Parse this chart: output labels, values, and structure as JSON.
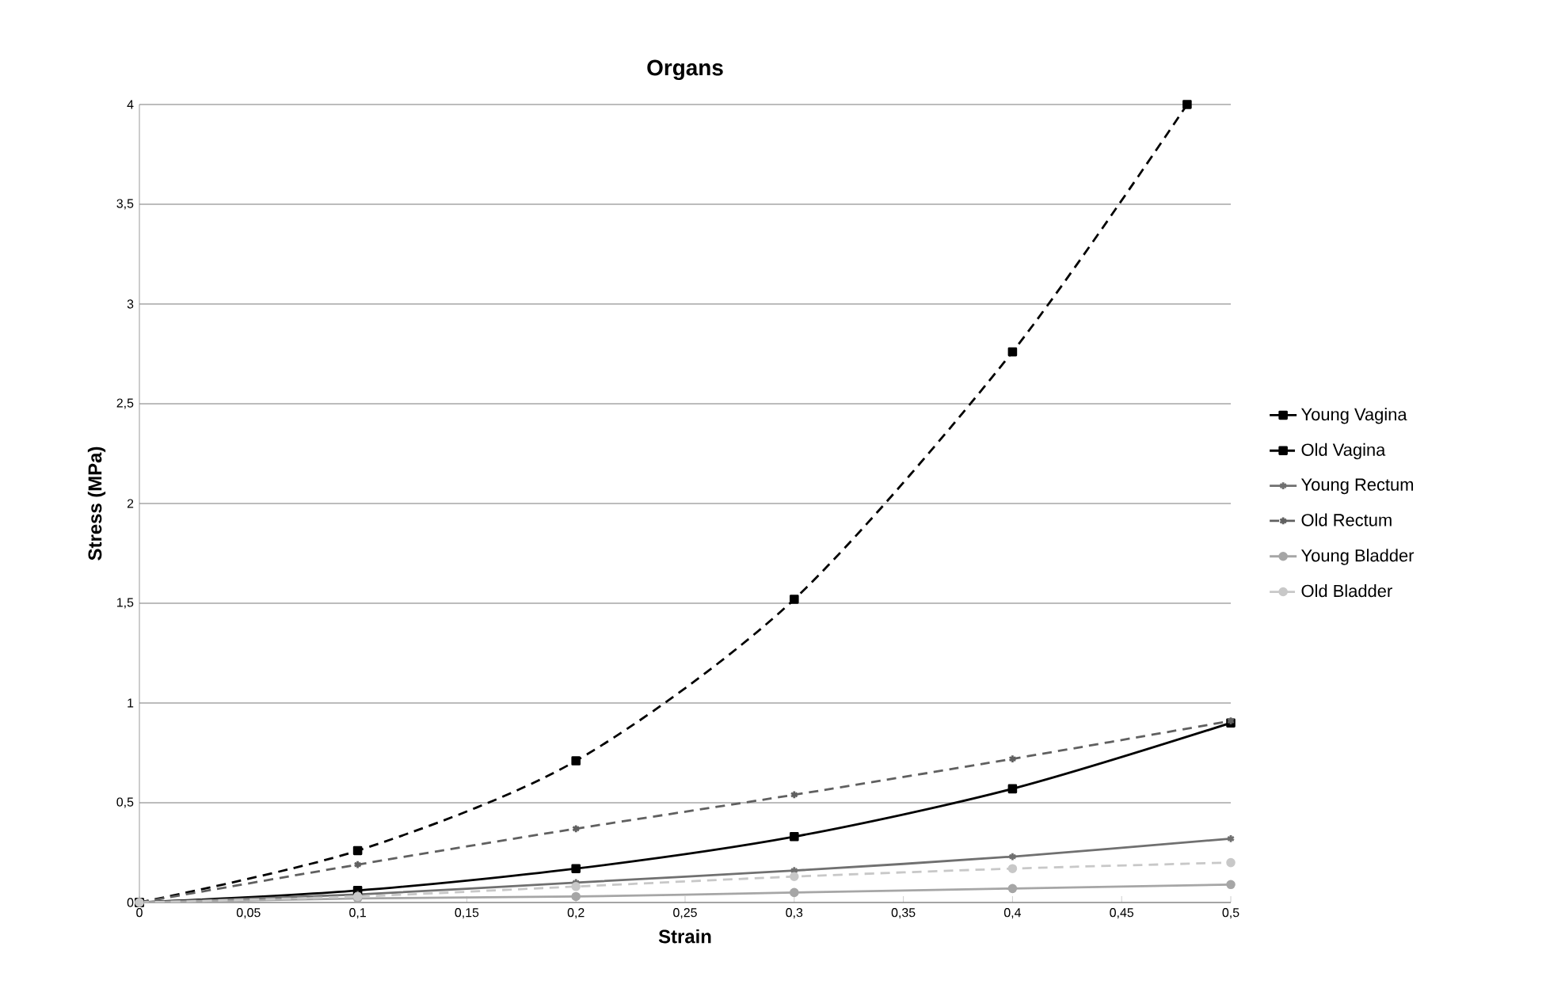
{
  "chart_data": {
    "type": "line",
    "title": "Organs",
    "xlabel": "Strain",
    "ylabel": "Stress (MPa)",
    "xlim": [
      0,
      0.5
    ],
    "ylim": [
      0,
      4
    ],
    "xticks": [
      0,
      {
        "value": 0.05,
        "label": "0,05"
      },
      {
        "value": 0.1,
        "label": "0,1"
      },
      {
        "value": 0.15,
        "label": "0,15"
      },
      {
        "value": 0.2,
        "label": "0,2"
      },
      {
        "value": 0.25,
        "label": "0,25"
      },
      {
        "value": 0.3,
        "label": "0,3"
      },
      {
        "value": 0.35,
        "label": "0,35"
      },
      {
        "value": 0.4,
        "label": "0,4"
      },
      {
        "value": 0.45,
        "label": "0,45"
      },
      {
        "value": 0.5,
        "label": "0,5"
      }
    ],
    "yticks": [
      0,
      {
        "value": 0.5,
        "label": "0,5"
      },
      1,
      {
        "value": 1.5,
        "label": "1,5"
      },
      2,
      {
        "value": 2.5,
        "label": "2,5"
      },
      3,
      {
        "value": 3.5,
        "label": "3,5"
      },
      4
    ],
    "grid": "y",
    "legend": "right",
    "series": [
      {
        "name": "Young Vagina",
        "color": "#000000",
        "marker": "square",
        "line_style": "solid",
        "x": [
          0,
          0.1,
          0.2,
          0.3,
          0.4,
          0.5
        ],
        "values": [
          0,
          0.06,
          0.17,
          0.33,
          0.57,
          0.9
        ]
      },
      {
        "name": "Old Vagina",
        "color": "#000000",
        "marker": "square",
        "line_style": "dashed",
        "x": [
          0,
          0.1,
          0.2,
          0.3,
          0.4,
          0.48
        ],
        "values": [
          0,
          0.26,
          0.71,
          1.52,
          2.76,
          4
        ]
      },
      {
        "name": "Young Rectum",
        "color": "#707070",
        "marker": "cross",
        "line_style": "solid",
        "x": [
          0,
          0.1,
          0.2,
          0.3,
          0.4,
          0.5
        ],
        "values": [
          0,
          0.04,
          0.1,
          0.16,
          0.23,
          0.32
        ]
      },
      {
        "name": "Old Rectum",
        "color": "#606060",
        "marker": "cross",
        "line_style": "dashed",
        "x": [
          0,
          0.1,
          0.2,
          0.3,
          0.4,
          0.5
        ],
        "values": [
          0,
          0.19,
          0.37,
          0.54,
          0.72,
          0.91
        ]
      },
      {
        "name": "Young Bladder",
        "color": "#a6a6a6",
        "marker": "circle",
        "line_style": "solid",
        "x": [
          0,
          0.1,
          0.2,
          0.3,
          0.4,
          0.5
        ],
        "values": [
          0,
          0.02,
          0.03,
          0.05,
          0.07,
          0.09
        ]
      },
      {
        "name": "Old Bladder",
        "color": "#c8c8c8",
        "marker": "circle",
        "line_style": "dashed",
        "x": [
          0,
          0.1,
          0.2,
          0.3,
          0.4,
          0.5
        ],
        "values": [
          0,
          0.03,
          0.08,
          0.13,
          0.17,
          0.2
        ]
      }
    ]
  }
}
